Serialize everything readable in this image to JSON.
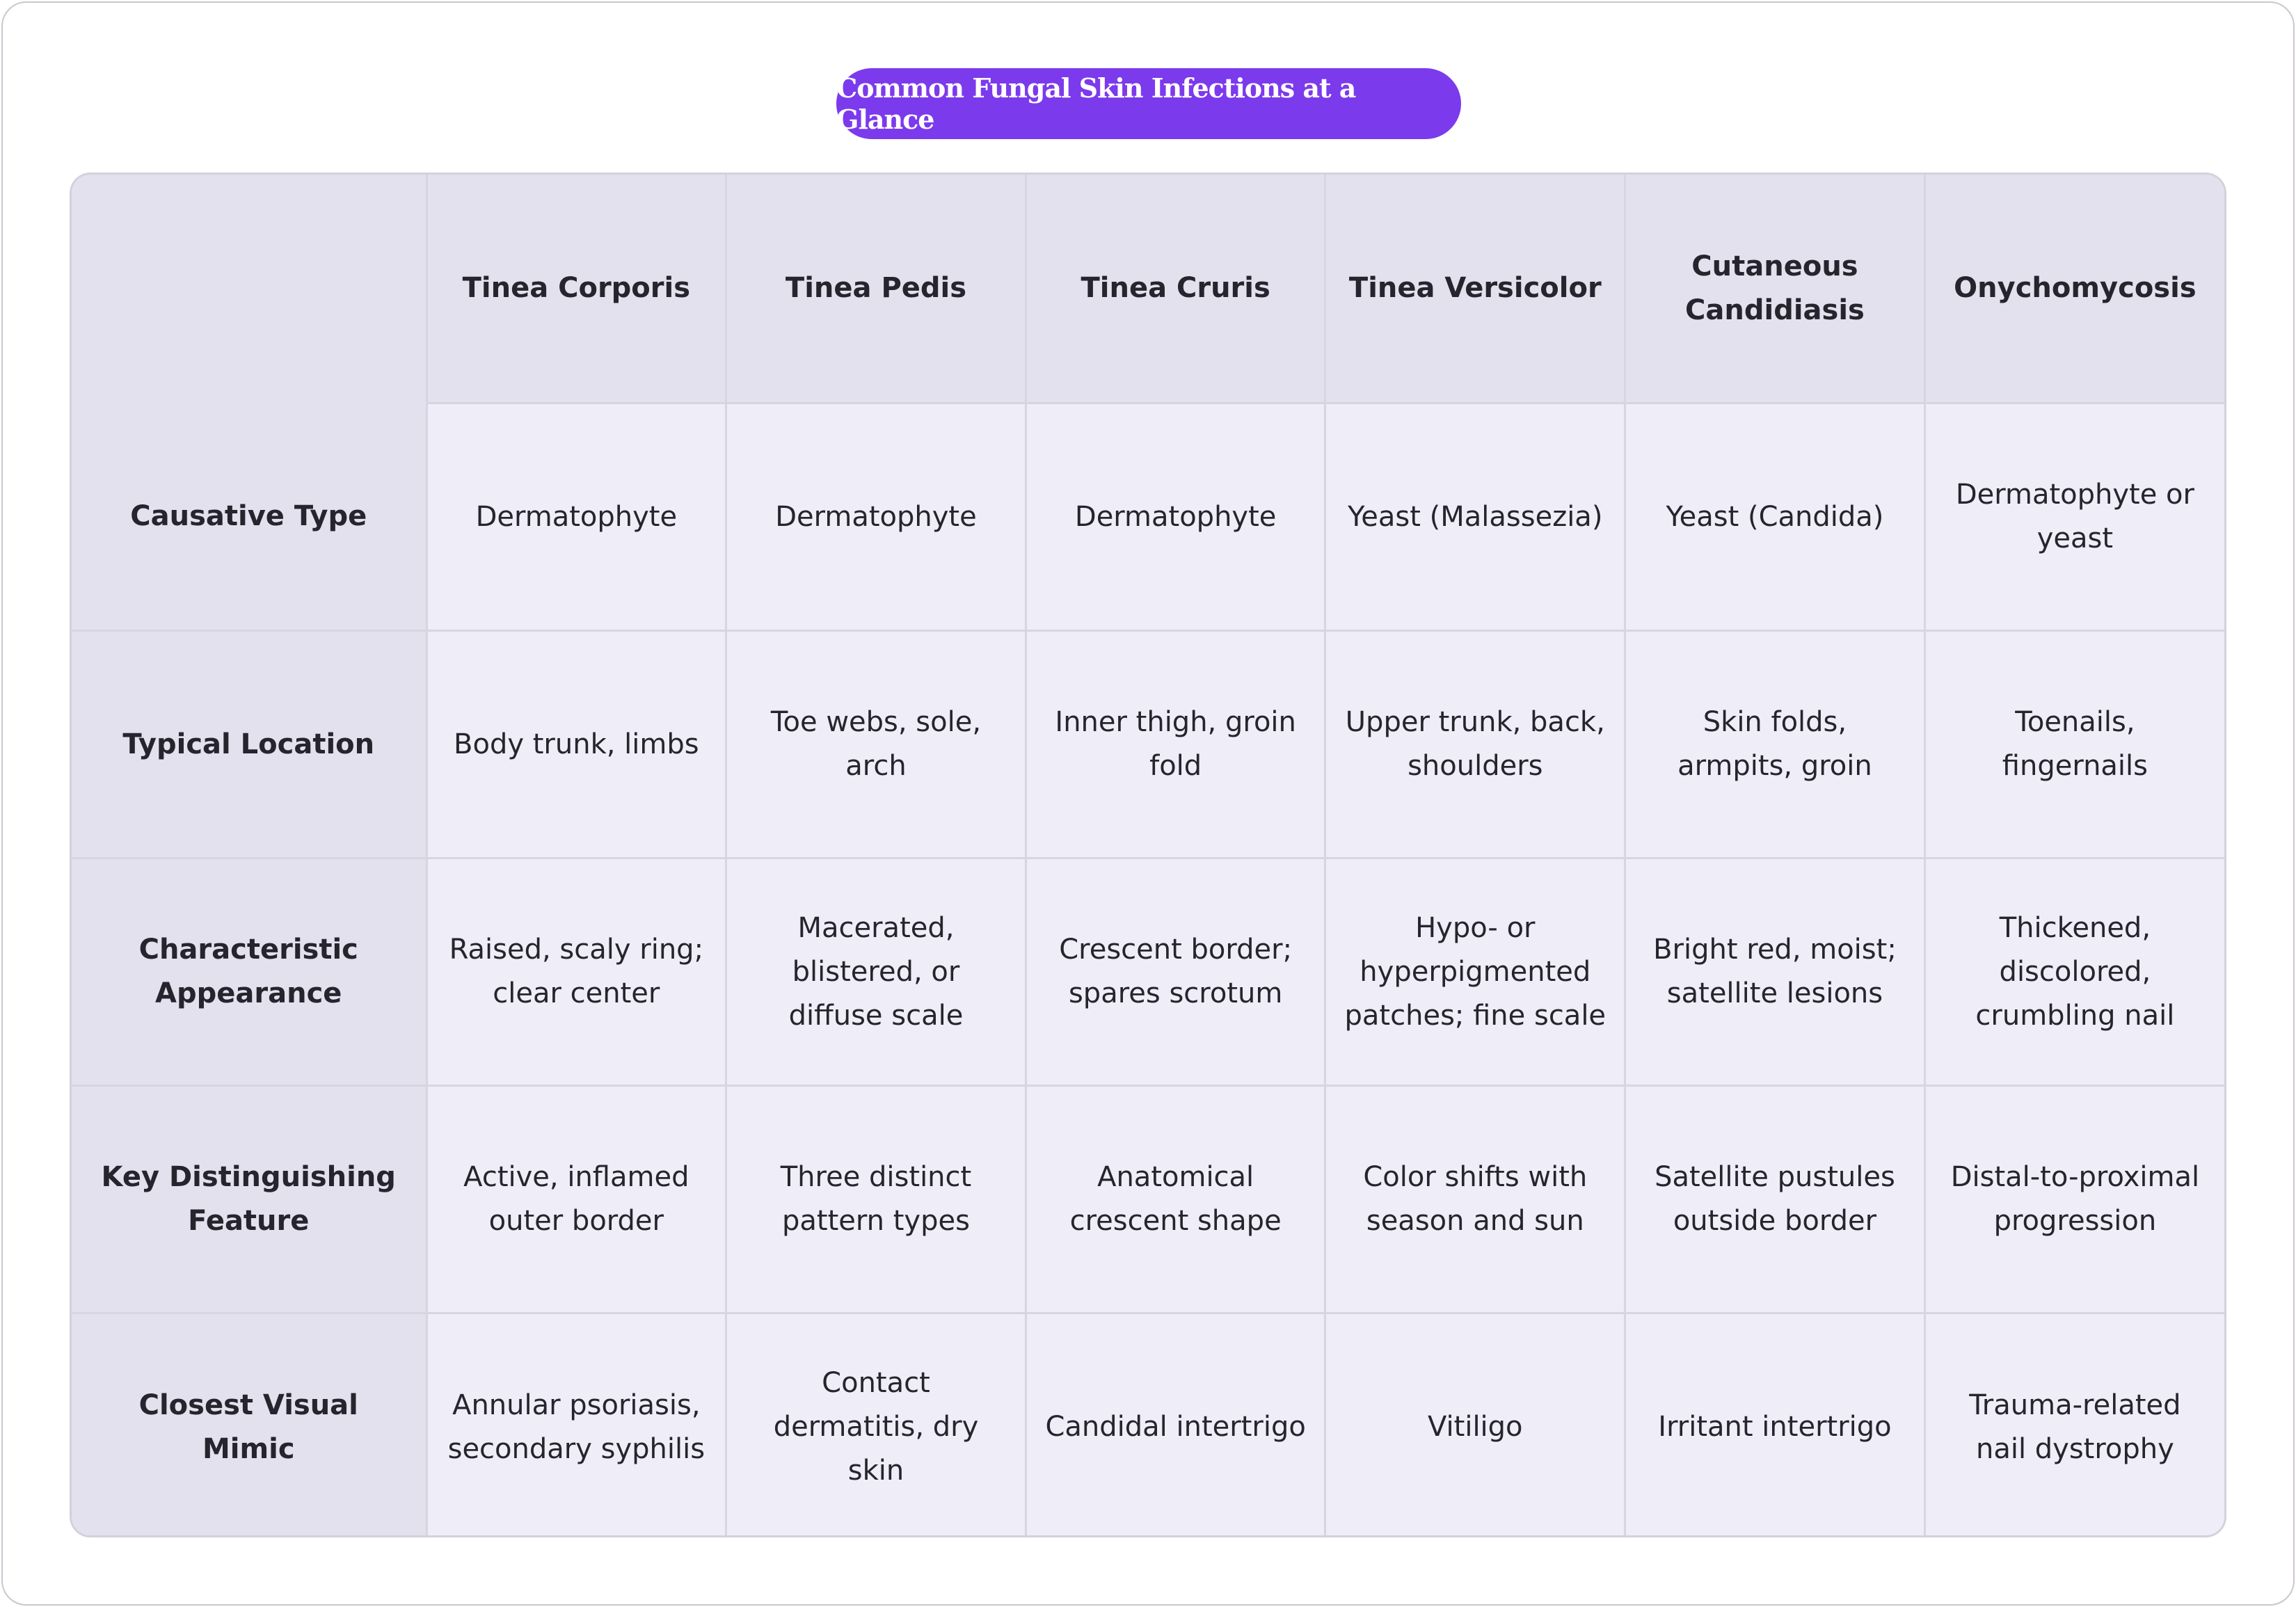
{
  "title": "Common Fungal Skin Infections at a Glance",
  "colors": {
    "accent": "#7c3aed",
    "header_bg": "#e3e1ee",
    "cell_bg": "#efedf8",
    "border": "#d7d5e0"
  },
  "table": {
    "corner": "",
    "columns": [
      "Tinea Corporis",
      "Tinea Pedis",
      "Tinea Cruris",
      "Tinea Versicolor",
      "Cutaneous Candidiasis",
      "Onychomycosis"
    ],
    "rows": [
      {
        "label": "Causative Type",
        "cells": [
          "Dermatophyte",
          "Dermatophyte",
          "Dermatophyte",
          "Yeast (Malassezia)",
          "Yeast (Candida)",
          "Dermatophyte or yeast"
        ]
      },
      {
        "label": "Typical Location",
        "cells": [
          "Body trunk, limbs",
          "Toe webs, sole, arch",
          "Inner thigh, groin fold",
          "Upper trunk, back, shoulders",
          "Skin folds, armpits, groin",
          "Toenails, fingernails"
        ]
      },
      {
        "label": "Characteristic Appearance",
        "cells": [
          "Raised, scaly ring; clear center",
          "Macerated, blistered, or diffuse scale",
          "Crescent border; spares scrotum",
          "Hypo- or hyperpigmented patches; fine scale",
          "Bright red, moist; satellite lesions",
          "Thickened, discolored, crumbling nail"
        ]
      },
      {
        "label": "Key Distinguishing Feature",
        "cells": [
          "Active, inflamed outer border",
          "Three distinct pattern types",
          "Anatomical crescent shape",
          "Color shifts with season and sun",
          "Satellite pustules outside border",
          "Distal-to-proximal progression"
        ]
      },
      {
        "label": "Closest Visual Mimic",
        "cells": [
          "Annular psoriasis, secondary syphilis",
          "Contact dermatitis, dry skin",
          "Candidal intertrigo",
          "Vitiligo",
          "Irritant intertrigo",
          "Trauma-related nail dystrophy"
        ]
      }
    ]
  }
}
